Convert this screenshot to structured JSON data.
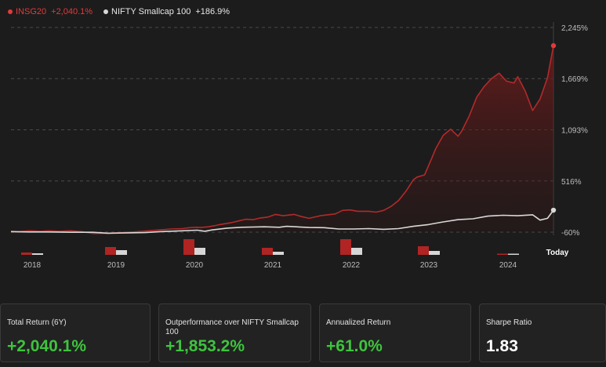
{
  "legend": [
    {
      "name": "INSG20",
      "value": "+2,040.1%",
      "color": "#e23a3a"
    },
    {
      "name": "NIFTY Smallcap 100",
      "value": "+186.9%",
      "color": "#d8d8d8"
    }
  ],
  "chart_data": {
    "type": "line",
    "series": [
      {
        "name": "INSG20",
        "color": "#b32a2a",
        "x": [
          2017.5,
          2017.6,
          2017.75,
          2017.9,
          2018.0,
          2018.15,
          2018.3,
          2018.45,
          2018.6,
          2018.8,
          2019.0,
          2019.2,
          2019.35,
          2019.5,
          2019.65,
          2019.8,
          2019.9,
          2020.0,
          2020.05,
          2020.15,
          2020.25,
          2020.3,
          2020.45,
          2020.55,
          2020.65,
          2020.75,
          2020.85,
          2020.95,
          2021.05,
          2021.15,
          2021.3,
          2021.4,
          2021.5,
          2021.65,
          2021.85,
          2021.95,
          2022.05,
          2022.15,
          2022.3,
          2022.4,
          2022.5,
          2022.6,
          2022.7,
          2022.8,
          2022.9,
          2022.95,
          2023.05,
          2023.15,
          2023.2,
          2023.3,
          2023.4,
          2023.5,
          2023.55,
          2023.65,
          2023.75,
          2023.85,
          2023.95,
          2024.05,
          2024.15,
          2024.25,
          2024.3,
          2024.4,
          2024.5,
          2024.6,
          2024.7,
          2024.78
        ],
        "y": [
          -50,
          -55,
          -45,
          -50,
          -45,
          -50,
          -45,
          -55,
          -75,
          -72,
          -65,
          -55,
          -45,
          -35,
          -25,
          -20,
          -10,
          -5,
          -8,
          0,
          15,
          25,
          45,
          65,
          85,
          80,
          100,
          110,
          140,
          125,
          140,
          115,
          95,
          125,
          145,
          185,
          190,
          175,
          175,
          165,
          185,
          230,
          295,
          400,
          530,
          560,
          585,
          780,
          880,
          1030,
          1100,
          1020,
          1080,
          1250,
          1460,
          1580,
          1670,
          1730,
          1640,
          1620,
          1690,
          1530,
          1310,
          1440,
          1680,
          2040.1
        ]
      },
      {
        "name": "NIFTY Smallcap 100",
        "color": "#d8d8d8",
        "x": [
          2017.5,
          2017.75,
          2018.0,
          2018.3,
          2018.6,
          2018.8,
          2019.0,
          2019.3,
          2019.5,
          2019.8,
          2020.0,
          2020.1,
          2020.2,
          2020.4,
          2020.6,
          2020.9,
          2021.1,
          2021.2,
          2021.5,
          2021.7,
          2021.9,
          2022.1,
          2022.3,
          2022.5,
          2022.7,
          2022.9,
          2023.1,
          2023.3,
          2023.5,
          2023.7,
          2023.9,
          2024.1,
          2024.3,
          2024.5,
          2024.6,
          2024.7,
          2024.78
        ],
        "y": [
          -55,
          -58,
          -58,
          -62,
          -62,
          -72,
          -70,
          -65,
          -55,
          -45,
          -38,
          -50,
          -35,
          -15,
          -5,
          0,
          -5,
          5,
          -8,
          -10,
          -25,
          -25,
          -20,
          -28,
          -20,
          5,
          25,
          55,
          80,
          90,
          120,
          130,
          125,
          135,
          75,
          95,
          186.9
        ]
      }
    ],
    "x_ticks": [
      "2018",
      "2019",
      "2020",
      "2021",
      "2022",
      "2023",
      "2024",
      "Today"
    ],
    "y_ticks": [
      "2,245%",
      "1,669%",
      "1,093%",
      "516%",
      "-60%"
    ],
    "ylim": [
      -60,
      2245
    ],
    "grid": "horizontal-dashed",
    "volume_bars": [
      {
        "year": "2018",
        "red": 0.15,
        "gray": 0.1
      },
      {
        "year": "2019",
        "red": 0.5,
        "gray": 0.3
      },
      {
        "year": "2020",
        "red": 1.0,
        "gray": 0.45
      },
      {
        "year": "2021",
        "red": 0.45,
        "gray": 0.2
      },
      {
        "year": "2022",
        "red": 1.0,
        "gray": 0.45
      },
      {
        "year": "2023",
        "red": 0.55,
        "gray": 0.25
      },
      {
        "year": "2024",
        "red": 0.05,
        "gray": 0.05
      }
    ]
  },
  "cards": [
    {
      "label": "Total Return (6Y)",
      "value": "+2,040.1%",
      "tone": "green"
    },
    {
      "label": "Outperformance over NIFTY Smallcap 100",
      "value": "+1,853.2%",
      "tone": "green"
    },
    {
      "label": "Annualized Return",
      "value": "+61.0%",
      "tone": "green"
    },
    {
      "label": "Sharpe Ratio",
      "value": "1.83",
      "tone": "white"
    }
  ]
}
